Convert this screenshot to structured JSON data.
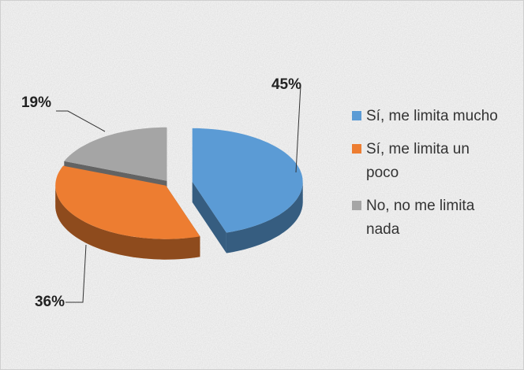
{
  "chart_data": {
    "type": "pie3d",
    "categories": [
      "Sí, me limita mucho",
      "Sí, me limita un poco",
      "No, no me limita nada"
    ],
    "values": [
      45,
      36,
      19
    ],
    "value_labels": [
      "45%",
      "36%",
      "19%"
    ],
    "colors": [
      "#5b9bd5",
      "#ed7d31",
      "#a5a5a5"
    ],
    "legend": "right"
  }
}
